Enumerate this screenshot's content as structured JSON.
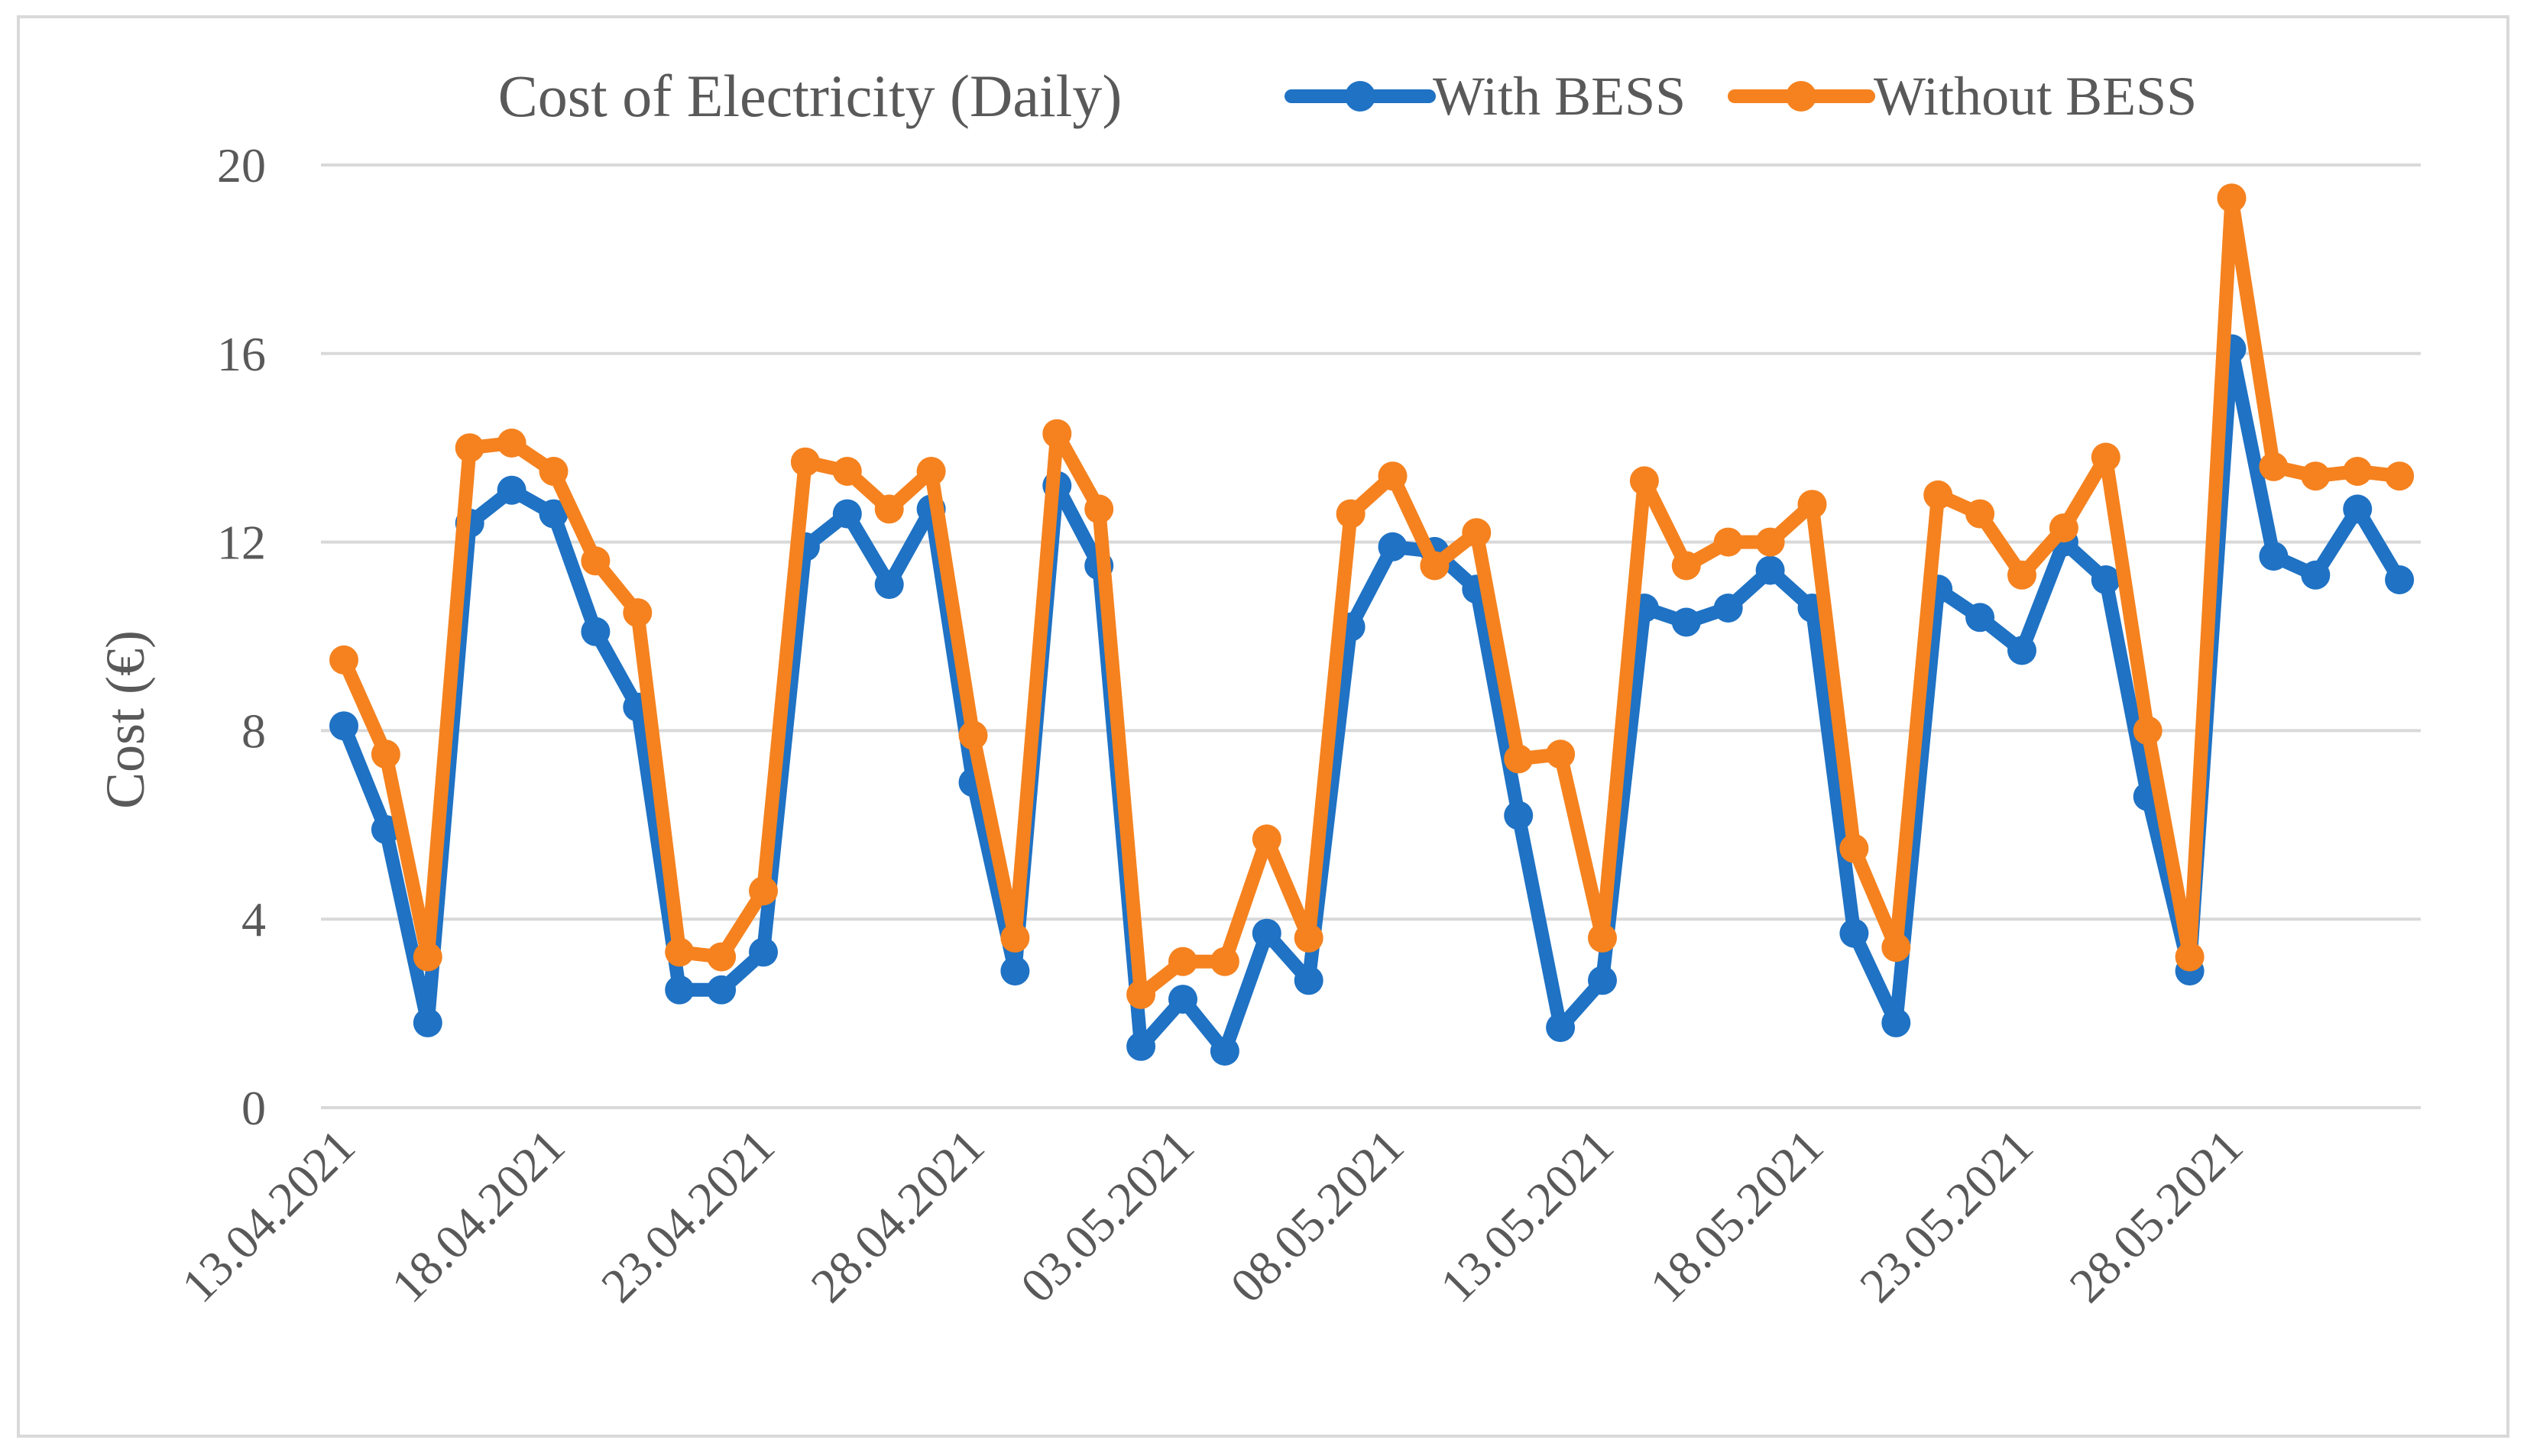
{
  "chart_data": {
    "type": "line",
    "title": "Cost of Electricity (Daily)",
    "xlabel": "",
    "ylabel": "Cost (€)",
    "ylim": [
      0,
      20
    ],
    "yticks": [
      0,
      4,
      8,
      12,
      16,
      20
    ],
    "grid": true,
    "legend_position": "top",
    "x_tick_labels": [
      "13.04.2021",
      "18.04.2021",
      "23.04.2021",
      "28.04.2021",
      "03.05.2021",
      "08.05.2021",
      "13.05.2021",
      "18.05.2021",
      "23.05.2021",
      "28.05.2021"
    ],
    "x_tick_every": 5,
    "series": [
      {
        "name": "With BESS",
        "color": "#1f72c4",
        "values": [
          8.1,
          5.9,
          1.8,
          12.4,
          13.1,
          12.6,
          10.1,
          8.5,
          2.5,
          2.5,
          3.3,
          11.9,
          12.6,
          11.1,
          12.7,
          6.9,
          2.9,
          13.2,
          11.5,
          1.3,
          2.3,
          1.2,
          3.7,
          2.7,
          10.2,
          11.9,
          11.8,
          11.0,
          6.2,
          1.7,
          2.7,
          10.6,
          10.3,
          10.6,
          11.4,
          10.6,
          3.7,
          1.8,
          11.0,
          10.4,
          9.7,
          12.0,
          11.2,
          6.6,
          2.9,
          16.1,
          11.7,
          11.3,
          12.7,
          11.2
        ]
      },
      {
        "name": "Without BESS",
        "color": "#f5821f",
        "values": [
          9.5,
          7.5,
          3.2,
          14.0,
          14.1,
          13.5,
          11.6,
          10.5,
          3.3,
          3.2,
          4.6,
          13.7,
          13.5,
          12.7,
          13.5,
          7.9,
          3.6,
          14.3,
          12.7,
          2.4,
          3.1,
          3.1,
          5.7,
          3.6,
          12.6,
          13.4,
          11.5,
          12.2,
          7.4,
          7.5,
          3.6,
          13.3,
          11.5,
          12.0,
          12.0,
          12.8,
          5.5,
          3.4,
          13.0,
          12.6,
          11.3,
          12.3,
          13.8,
          8.0,
          3.2,
          19.3,
          13.6,
          13.4,
          13.5,
          13.4
        ]
      }
    ]
  }
}
